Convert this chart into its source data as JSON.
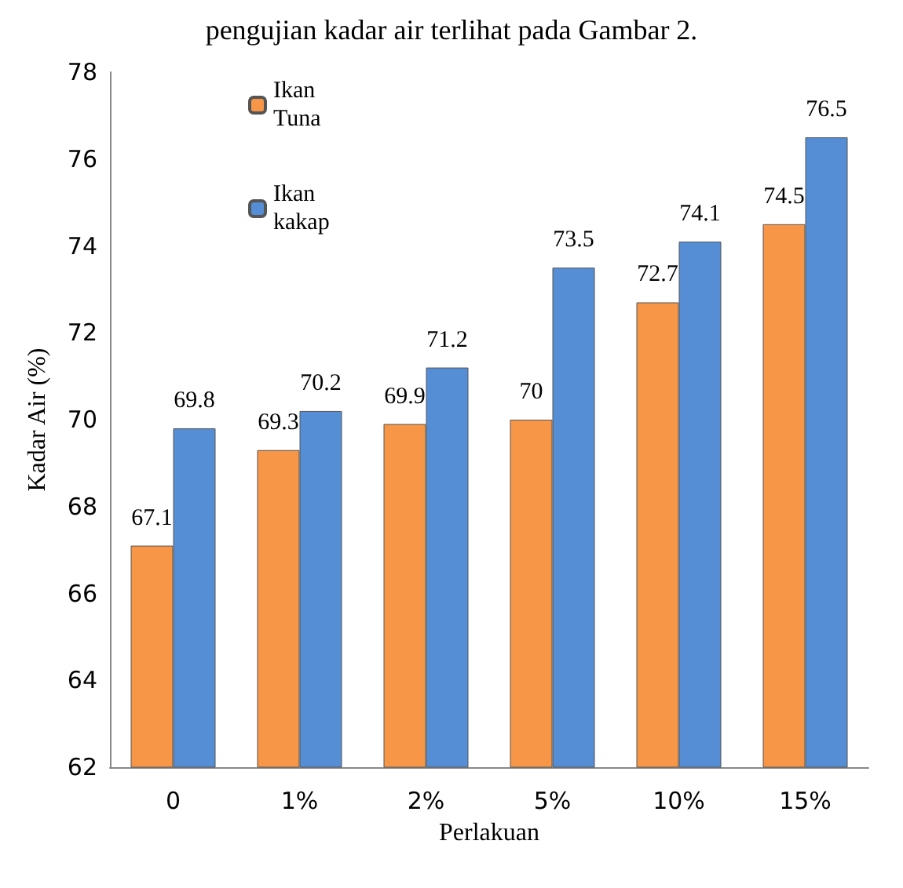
{
  "chart_data": {
    "type": "bar",
    "ylabel": "Kadar Air (%)",
    "xlabel": "Perlakuan",
    "annotations": [
      "pengujian kadar air terlihat pada Gambar 2."
    ],
    "categories": [
      "0",
      "1%",
      "2%",
      "5%",
      "10%",
      "15%"
    ],
    "series": [
      {
        "name": "Ikan Tuna",
        "color": "#f79646",
        "values": [
          67.1,
          69.3,
          69.9,
          70,
          72.7,
          74.5
        ]
      },
      {
        "name": "Ikan kakap",
        "color": "#558ed5",
        "values": [
          69.8,
          70.2,
          71.2,
          73.5,
          74.1,
          76.5
        ]
      }
    ],
    "ylim": [
      62,
      78
    ],
    "yticks": [
      62,
      64,
      66,
      68,
      70,
      72,
      74,
      76,
      78
    ],
    "data_labels": true,
    "legend": "top left",
    "grid": false
  }
}
